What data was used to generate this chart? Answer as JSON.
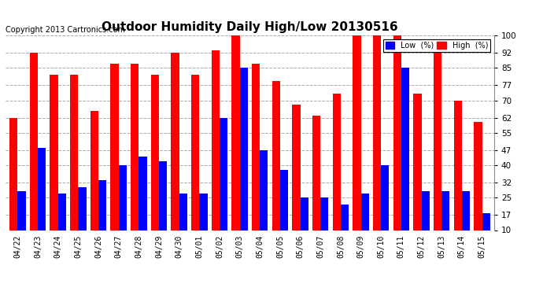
{
  "title": "Outdoor Humidity Daily High/Low 20130516",
  "copyright": "Copyright 2013 Cartronics.com",
  "dates": [
    "04/22",
    "04/23",
    "04/24",
    "04/25",
    "04/26",
    "04/27",
    "04/28",
    "04/29",
    "04/30",
    "05/01",
    "05/02",
    "05/03",
    "05/04",
    "05/05",
    "05/06",
    "05/07",
    "05/08",
    "05/09",
    "05/10",
    "05/11",
    "05/12",
    "05/13",
    "05/14",
    "05/15"
  ],
  "high": [
    62,
    92,
    82,
    82,
    65,
    87,
    87,
    82,
    92,
    82,
    93,
    100,
    87,
    79,
    68,
    63,
    73,
    100,
    100,
    100,
    73,
    92,
    70,
    60
  ],
  "low": [
    28,
    48,
    27,
    30,
    33,
    40,
    44,
    42,
    27,
    27,
    62,
    85,
    47,
    38,
    25,
    25,
    22,
    27,
    40,
    85,
    28,
    28,
    28,
    18
  ],
  "ylim": [
    10,
    100
  ],
  "yticks": [
    10,
    17,
    25,
    32,
    40,
    47,
    55,
    62,
    70,
    77,
    85,
    92,
    100
  ],
  "bar_color_low": "#0000ff",
  "bar_color_high": "#ff0000",
  "bg_color": "#ffffff",
  "grid_color": "#aaaaaa",
  "title_fontsize": 11,
  "copyright_fontsize": 7,
  "legend_low_label": "Low  (%)",
  "legend_high_label": "High  (%)"
}
